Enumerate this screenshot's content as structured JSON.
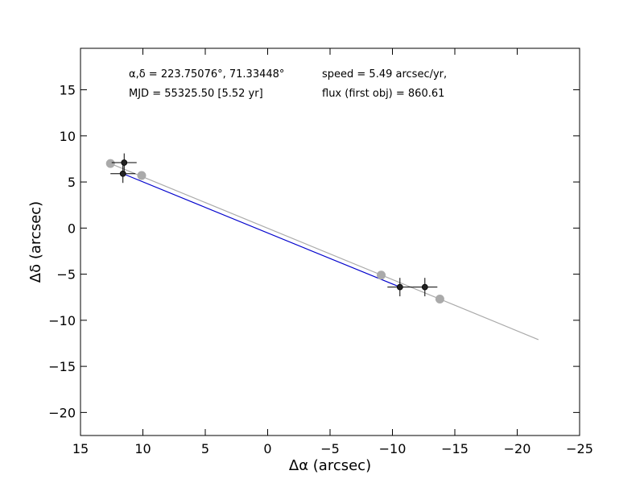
{
  "chart_data": {
    "type": "scatter",
    "xlabel": "Δα (arcsec)",
    "ylabel": "Δδ (arcsec)",
    "xlim": [
      15,
      -25
    ],
    "ylim": [
      -22.5,
      19.5
    ],
    "xticks": [
      15,
      10,
      5,
      0,
      -5,
      -10,
      -15,
      -20,
      -25
    ],
    "yticks": [
      15,
      10,
      5,
      0,
      -5,
      -10,
      -15,
      -20
    ],
    "xtick_labels": [
      "15",
      "10",
      "5",
      "0",
      "−5",
      "−10",
      "−15",
      "−20",
      "−25"
    ],
    "ytick_labels": [
      "15",
      "10",
      "5",
      "0",
      "−5",
      "−10",
      "−15",
      "−20"
    ],
    "grid": false,
    "annotations": {
      "coords": "α,δ = 223.75076°, 71.33448°",
      "mjd": "MJD = 55325.50 [5.52 yr]",
      "speed": "speed = 5.49 arcsec/yr,",
      "flux": "flux (first obj) = 860.61"
    },
    "series": [
      {
        "role": "model_motion_line",
        "color": "#aaaaaa",
        "x": [
          12.6,
          -21.7
        ],
        "y": [
          7.0,
          -12.1
        ]
      },
      {
        "role": "model_positions",
        "color": "#aaaaaa",
        "x": [
          12.6,
          10.1,
          -9.1,
          -13.8
        ],
        "y": [
          7.0,
          5.7,
          -5.1,
          -7.7
        ]
      },
      {
        "role": "observed_motion_line",
        "color": "#0000cc",
        "x": [
          11.6,
          -10.6
        ],
        "y": [
          5.9,
          -6.4
        ]
      },
      {
        "role": "observed_positions",
        "color": "#222222",
        "x": [
          11.5,
          11.6,
          -10.6,
          -12.6
        ],
        "y": [
          7.1,
          5.9,
          -6.4,
          -6.4
        ],
        "xerr": [
          1.0,
          1.0,
          1.0,
          1.0
        ],
        "yerr": [
          1.0,
          1.0,
          1.0,
          1.0
        ]
      }
    ]
  }
}
